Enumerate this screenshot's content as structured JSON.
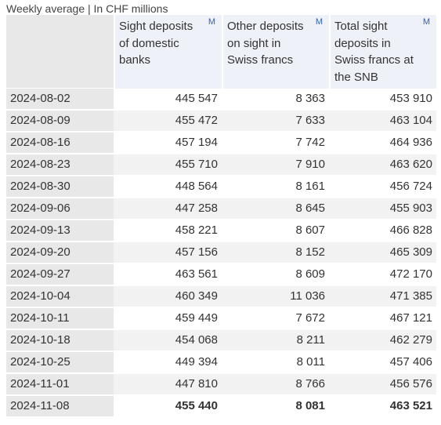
{
  "caption": "Weekly average | In CHF millions",
  "columns": [
    {
      "label": "Sight deposits of domestic banks",
      "link": "M"
    },
    {
      "label": "Other deposits on sight in Swiss francs",
      "link": "M"
    },
    {
      "label": "Total sight deposits in Swiss francs at the SNB",
      "link": "M"
    }
  ],
  "rows": [
    {
      "date": "2024-08-02",
      "a": "445 547",
      "b": "8 363",
      "c": "453 910"
    },
    {
      "date": "2024-08-09",
      "a": "455 472",
      "b": "7 633",
      "c": "463 104"
    },
    {
      "date": "2024-08-16",
      "a": "457 194",
      "b": "7 742",
      "c": "464 936"
    },
    {
      "date": "2024-08-23",
      "a": "455 710",
      "b": "7 910",
      "c": "463 620"
    },
    {
      "date": "2024-08-30",
      "a": "448 564",
      "b": "8 161",
      "c": "456 724"
    },
    {
      "date": "2024-09-06",
      "a": "447 258",
      "b": "8 645",
      "c": "455 903"
    },
    {
      "date": "2024-09-13",
      "a": "458 221",
      "b": "8 607",
      "c": "466 828"
    },
    {
      "date": "2024-09-20",
      "a": "457 156",
      "b": "8 152",
      "c": "465 309"
    },
    {
      "date": "2024-09-27",
      "a": "463 561",
      "b": "8 609",
      "c": "472 170"
    },
    {
      "date": "2024-10-04",
      "a": "460 349",
      "b": "11 036",
      "c": "471 385"
    },
    {
      "date": "2024-10-11",
      "a": "459 449",
      "b": "7 672",
      "c": "467 121"
    },
    {
      "date": "2024-10-18",
      "a": "454 068",
      "b": "8 211",
      "c": "462 279"
    },
    {
      "date": "2024-10-25",
      "a": "449 394",
      "b": "8 011",
      "c": "457 406"
    },
    {
      "date": "2024-11-01",
      "a": "447 810",
      "b": "8 766",
      "c": "456 576"
    },
    {
      "date": "2024-11-08",
      "a": "455 440",
      "b": "8 081",
      "c": "463 521"
    }
  ],
  "colors": {
    "header_bg": "#eef1f8",
    "date_bg": "#e8e8e8",
    "stripe_bg": "#f2f2f2",
    "link": "#2f62b4"
  }
}
